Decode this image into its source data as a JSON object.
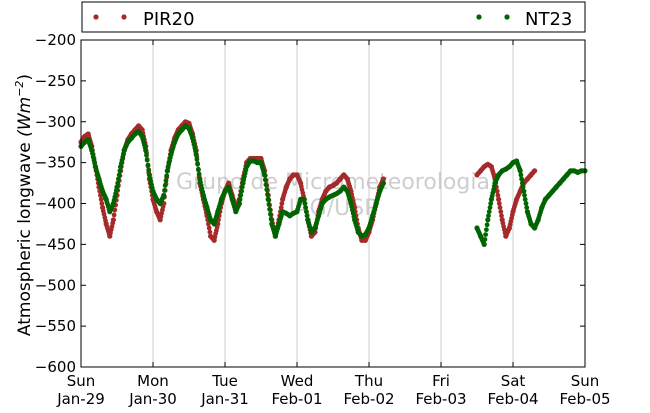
{
  "chart_data": {
    "type": "scatter",
    "ylabel": "Atmospheric longwave",
    "ylabel_unit_base": "(Wm",
    "ylabel_unit_exp": "−2",
    "ylabel_unit_close": ")",
    "ylim": [
      -600,
      -200
    ],
    "yticks": [
      -200,
      -250,
      -300,
      -350,
      -400,
      -450,
      -500,
      -550,
      -600
    ],
    "ytick_labels": [
      "−200",
      "−250",
      "−300",
      "−350",
      "−400",
      "−450",
      "−500",
      "−550",
      "−600"
    ],
    "xlim": [
      "2012-01-29",
      "2012-02-05"
    ],
    "x_ticks": [
      {
        "day": "Sun",
        "date": "Jan-29"
      },
      {
        "day": "Mon",
        "date": "Jan-30"
      },
      {
        "day": "Tue",
        "date": "Jan-31"
      },
      {
        "day": "Wed",
        "date": "Feb-01"
      },
      {
        "day": "Thu",
        "date": "Feb-02"
      },
      {
        "day": "Fri",
        "date": "Feb-03"
      },
      {
        "day": "Sat",
        "date": "Feb-04"
      },
      {
        "day": "Sun",
        "date": "Feb-05"
      }
    ],
    "grid": "vertical",
    "legend_placement": "top, outside plot",
    "watermark": [
      "Grupo de Micrometeorologia",
      "IAG/USP"
    ],
    "series": [
      {
        "name": "PIR20",
        "color": "#a52a2a",
        "points": [
          [
            0.0,
            -325
          ],
          [
            0.05,
            -318
          ],
          [
            0.1,
            -315
          ],
          [
            0.15,
            -330
          ],
          [
            0.2,
            -355
          ],
          [
            0.25,
            -380
          ],
          [
            0.3,
            -405
          ],
          [
            0.35,
            -425
          ],
          [
            0.4,
            -440
          ],
          [
            0.45,
            -420
          ],
          [
            0.5,
            -390
          ],
          [
            0.55,
            -360
          ],
          [
            0.6,
            -335
          ],
          [
            0.65,
            -322
          ],
          [
            0.7,
            -315
          ],
          [
            0.75,
            -310
          ],
          [
            0.8,
            -305
          ],
          [
            0.85,
            -310
          ],
          [
            0.9,
            -330
          ],
          [
            0.95,
            -370
          ],
          [
            1.0,
            -395
          ],
          [
            1.05,
            -410
          ],
          [
            1.1,
            -420
          ],
          [
            1.15,
            -400
          ],
          [
            1.2,
            -360
          ],
          [
            1.25,
            -335
          ],
          [
            1.3,
            -320
          ],
          [
            1.35,
            -310
          ],
          [
            1.4,
            -305
          ],
          [
            1.45,
            -300
          ],
          [
            1.5,
            -302
          ],
          [
            1.55,
            -315
          ],
          [
            1.6,
            -335
          ],
          [
            1.65,
            -375
          ],
          [
            1.7,
            -395
          ],
          [
            1.75,
            -415
          ],
          [
            1.8,
            -440
          ],
          [
            1.85,
            -445
          ],
          [
            1.9,
            -425
          ],
          [
            1.95,
            -400
          ],
          [
            2.0,
            -385
          ],
          [
            2.05,
            -375
          ],
          [
            2.1,
            -390
          ],
          [
            2.15,
            -405
          ],
          [
            2.2,
            -395
          ],
          [
            2.25,
            -370
          ],
          [
            2.3,
            -350
          ],
          [
            2.35,
            -345
          ],
          [
            2.4,
            -345
          ],
          [
            2.45,
            -345
          ],
          [
            2.5,
            -345
          ],
          [
            2.55,
            -360
          ],
          [
            2.6,
            -390
          ],
          [
            2.65,
            -420
          ],
          [
            2.7,
            -440
          ],
          [
            2.75,
            -420
          ],
          [
            2.8,
            -395
          ],
          [
            2.85,
            -380
          ],
          [
            2.9,
            -370
          ],
          [
            2.95,
            -365
          ],
          [
            3.0,
            -365
          ],
          [
            3.05,
            -375
          ],
          [
            3.1,
            -395
          ],
          [
            3.15,
            -420
          ],
          [
            3.2,
            -440
          ],
          [
            3.25,
            -435
          ],
          [
            3.3,
            -410
          ],
          [
            3.35,
            -395
          ],
          [
            3.4,
            -385
          ],
          [
            3.45,
            -380
          ],
          [
            3.5,
            -378
          ],
          [
            3.55,
            -375
          ],
          [
            3.6,
            -370
          ],
          [
            3.65,
            -365
          ],
          [
            3.7,
            -370
          ],
          [
            3.75,
            -385
          ],
          [
            3.8,
            -405
          ],
          [
            3.85,
            -430
          ],
          [
            3.9,
            -445
          ],
          [
            3.95,
            -445
          ],
          [
            4.0,
            -435
          ],
          [
            4.05,
            -420
          ],
          [
            4.1,
            -400
          ],
          [
            4.15,
            -380
          ],
          [
            4.2,
            -370
          ],
          [
            5.5,
            -365
          ],
          [
            5.55,
            -360
          ],
          [
            5.6,
            -355
          ],
          [
            5.65,
            -352
          ],
          [
            5.7,
            -355
          ],
          [
            5.75,
            -370
          ],
          [
            5.8,
            -395
          ],
          [
            5.85,
            -420
          ],
          [
            5.9,
            -440
          ],
          [
            5.95,
            -430
          ],
          [
            6.0,
            -410
          ],
          [
            6.05,
            -395
          ],
          [
            6.1,
            -385
          ],
          [
            6.15,
            -375
          ],
          [
            6.2,
            -370
          ],
          [
            6.25,
            -365
          ],
          [
            6.3,
            -360
          ]
        ]
      },
      {
        "name": "NT23",
        "color": "#006400",
        "points": [
          [
            0.0,
            -330
          ],
          [
            0.05,
            -325
          ],
          [
            0.1,
            -322
          ],
          [
            0.15,
            -335
          ],
          [
            0.2,
            -355
          ],
          [
            0.25,
            -370
          ],
          [
            0.3,
            -385
          ],
          [
            0.35,
            -395
          ],
          [
            0.4,
            -410
          ],
          [
            0.45,
            -400
          ],
          [
            0.5,
            -380
          ],
          [
            0.55,
            -355
          ],
          [
            0.6,
            -335
          ],
          [
            0.65,
            -325
          ],
          [
            0.7,
            -320
          ],
          [
            0.75,
            -315
          ],
          [
            0.8,
            -312
          ],
          [
            0.85,
            -318
          ],
          [
            0.9,
            -335
          ],
          [
            0.95,
            -365
          ],
          [
            1.0,
            -385
          ],
          [
            1.05,
            -395
          ],
          [
            1.1,
            -400
          ],
          [
            1.15,
            -390
          ],
          [
            1.2,
            -360
          ],
          [
            1.25,
            -340
          ],
          [
            1.3,
            -325
          ],
          [
            1.35,
            -315
          ],
          [
            1.4,
            -310
          ],
          [
            1.45,
            -305
          ],
          [
            1.5,
            -308
          ],
          [
            1.55,
            -320
          ],
          [
            1.6,
            -340
          ],
          [
            1.65,
            -370
          ],
          [
            1.7,
            -390
          ],
          [
            1.75,
            -405
          ],
          [
            1.8,
            -420
          ],
          [
            1.85,
            -425
          ],
          [
            1.9,
            -410
          ],
          [
            1.95,
            -395
          ],
          [
            2.0,
            -385
          ],
          [
            2.05,
            -380
          ],
          [
            2.1,
            -395
          ],
          [
            2.15,
            -410
          ],
          [
            2.2,
            -400
          ],
          [
            2.25,
            -375
          ],
          [
            2.3,
            -355
          ],
          [
            2.35,
            -348
          ],
          [
            2.4,
            -348
          ],
          [
            2.45,
            -350
          ],
          [
            2.5,
            -350
          ],
          [
            2.55,
            -365
          ],
          [
            2.6,
            -395
          ],
          [
            2.65,
            -425
          ],
          [
            2.7,
            -440
          ],
          [
            2.75,
            -425
          ],
          [
            2.8,
            -410
          ],
          [
            2.85,
            -412
          ],
          [
            2.9,
            -415
          ],
          [
            2.95,
            -412
          ],
          [
            3.0,
            -410
          ],
          [
            3.05,
            -395
          ],
          [
            3.1,
            -395
          ],
          [
            3.15,
            -420
          ],
          [
            3.2,
            -435
          ],
          [
            3.25,
            -430
          ],
          [
            3.3,
            -415
          ],
          [
            3.35,
            -400
          ],
          [
            3.4,
            -395
          ],
          [
            3.45,
            -392
          ],
          [
            3.5,
            -390
          ],
          [
            3.55,
            -388
          ],
          [
            3.6,
            -385
          ],
          [
            3.65,
            -380
          ],
          [
            3.7,
            -385
          ],
          [
            3.75,
            -400
          ],
          [
            3.8,
            -420
          ],
          [
            3.85,
            -435
          ],
          [
            3.9,
            -440
          ],
          [
            3.95,
            -438
          ],
          [
            4.0,
            -430
          ],
          [
            4.05,
            -415
          ],
          [
            4.1,
            -400
          ],
          [
            4.15,
            -385
          ],
          [
            4.2,
            -375
          ],
          [
            5.5,
            -430
          ],
          [
            5.55,
            -440
          ],
          [
            5.6,
            -450
          ],
          [
            5.65,
            -420
          ],
          [
            5.7,
            -395
          ],
          [
            5.75,
            -375
          ],
          [
            5.8,
            -365
          ],
          [
            5.85,
            -360
          ],
          [
            5.9,
            -358
          ],
          [
            5.95,
            -355
          ],
          [
            6.0,
            -350
          ],
          [
            6.05,
            -348
          ],
          [
            6.1,
            -360
          ],
          [
            6.15,
            -385
          ],
          [
            6.2,
            -410
          ],
          [
            6.25,
            -425
          ],
          [
            6.3,
            -430
          ],
          [
            6.35,
            -420
          ],
          [
            6.4,
            -405
          ],
          [
            6.45,
            -395
          ],
          [
            6.5,
            -390
          ],
          [
            6.55,
            -385
          ],
          [
            6.6,
            -380
          ],
          [
            6.65,
            -375
          ],
          [
            6.7,
            -370
          ],
          [
            6.75,
            -365
          ],
          [
            6.8,
            -360
          ],
          [
            6.85,
            -360
          ],
          [
            6.9,
            -362
          ],
          [
            6.95,
            -360
          ],
          [
            7.0,
            -360
          ]
        ]
      }
    ]
  }
}
